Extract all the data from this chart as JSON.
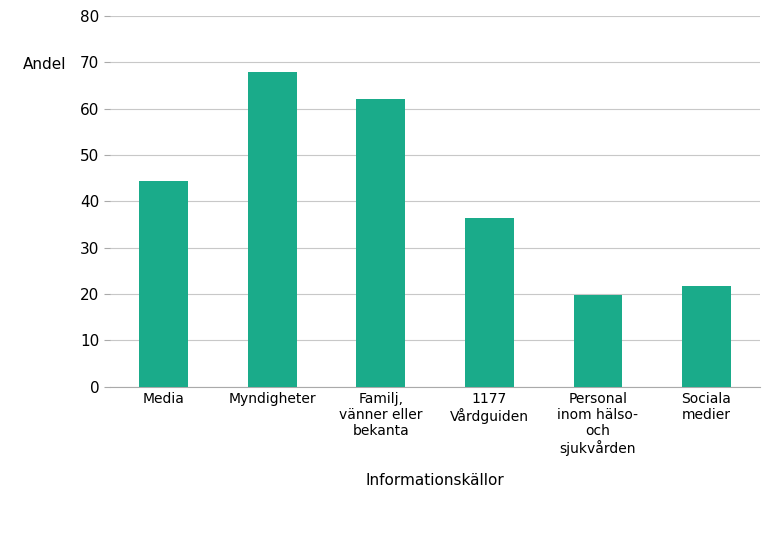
{
  "categories": [
    "Media",
    "Myndigheter",
    "Familj,\nvänner eller\nbekanta",
    "1177\nVårdguiden",
    "Personal\ninom hälso-\noch\nsjukvården",
    "Sociala\nmedier"
  ],
  "values": [
    44.5,
    68.0,
    62.0,
    36.5,
    19.7,
    21.7
  ],
  "bar_color": "#1aab8a",
  "ylabel": "Andel",
  "xlabel": "Informationskällor",
  "ylim": [
    0,
    80
  ],
  "yticks": [
    0,
    10,
    20,
    30,
    40,
    50,
    60,
    70,
    80
  ],
  "ytick_labels": [
    "0",
    "10",
    "20",
    "30",
    "40",
    "50",
    "60",
    "70",
    "80"
  ],
  "background_color": "#ffffff",
  "grid_color": "#c8c8c8",
  "bar_width": 0.45,
  "figsize": [
    7.84,
    5.37
  ],
  "dpi": 100
}
